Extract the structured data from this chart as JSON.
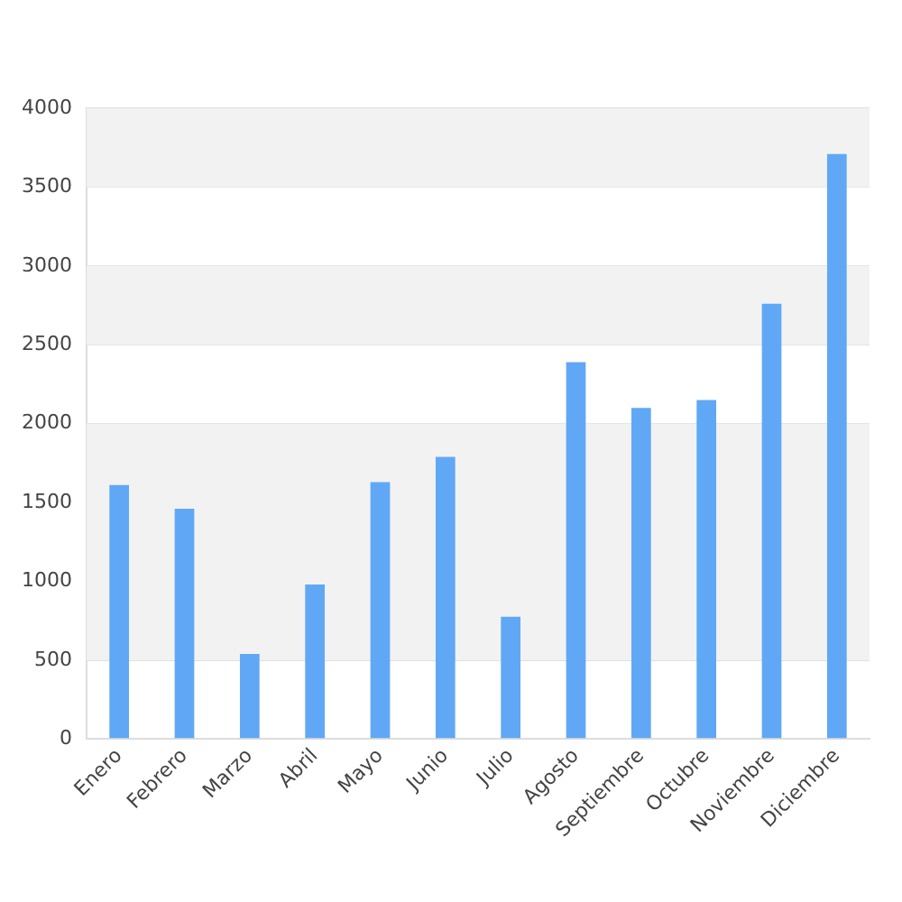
{
  "chart_data": {
    "type": "bar",
    "categories": [
      "Enero",
      "Febrero",
      "Marzo",
      "Abril",
      "Mayo",
      "Junio",
      "Julio",
      "Agosto",
      "Septiembre",
      "Octubre",
      "Noviembre",
      "Diciembre"
    ],
    "values": [
      1610,
      1460,
      540,
      980,
      1630,
      1790,
      775,
      2390,
      2100,
      2150,
      2760,
      3710
    ],
    "color": "#60a8f5",
    "ylim": [
      0,
      4000
    ],
    "yticks": [
      0,
      500,
      1000,
      1500,
      2000,
      2500,
      3000,
      3500,
      4000
    ],
    "grid": "y",
    "bands": [
      {
        "axis": "y",
        "from": 3500,
        "to": 4000,
        "color": "#f2f2f2"
      },
      {
        "axis": "y",
        "from": 2500,
        "to": 3000,
        "color": "#f2f2f2"
      },
      {
        "axis": "y",
        "from": 500,
        "to": 2000,
        "color": "#f2f2f2"
      }
    ]
  }
}
